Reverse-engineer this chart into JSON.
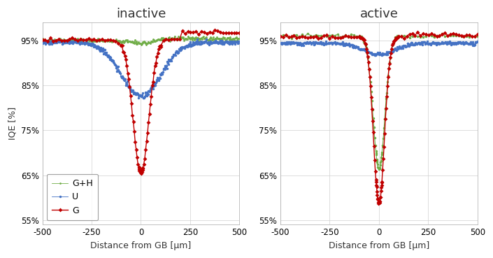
{
  "title_left": "inactive",
  "title_right": "active",
  "xlabel": "Distance from GB [μm]",
  "ylabel": "IQE [%]",
  "xlim": [
    -500,
    500
  ],
  "ylim": [
    0.54,
    0.99
  ],
  "yticks": [
    0.55,
    0.65,
    0.75,
    0.85,
    0.95
  ],
  "ytick_labels": [
    "55%",
    "65%",
    "75%",
    "85%",
    "95%"
  ],
  "xticks": [
    -500,
    -250,
    0,
    250,
    500
  ],
  "legend_labels": [
    "U",
    "G",
    "G+H"
  ],
  "colors": {
    "U": "#4472C4",
    "G": "#C00000",
    "GH": "#70AD47"
  },
  "background_color": "#FFFFFF",
  "grid_color": "#D0D0D0"
}
